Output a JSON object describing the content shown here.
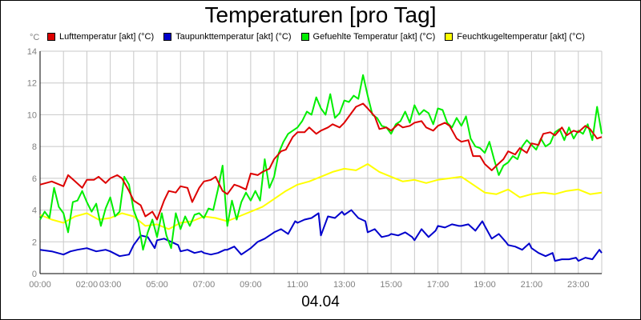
{
  "chart_data": {
    "type": "line",
    "title": "Temperaturen [pro Tag]",
    "unit": "°C",
    "footer": "04.04",
    "xlim": [
      0,
      24
    ],
    "ylim": [
      0,
      14
    ],
    "y_ticks": [
      0,
      2,
      4,
      6,
      8,
      10,
      12,
      14
    ],
    "x_ticks": [
      {
        "h": 0,
        "label": "00:00"
      },
      {
        "h": 2,
        "label": "02:00"
      },
      {
        "h": 3,
        "label": "03:00"
      },
      {
        "h": 5,
        "label": "05:00"
      },
      {
        "h": 7,
        "label": "07:00"
      },
      {
        "h": 9,
        "label": "09:00"
      },
      {
        "h": 11,
        "label": "11:00"
      },
      {
        "h": 13,
        "label": "13:00"
      },
      {
        "h": 15,
        "label": "15:00"
      },
      {
        "h": 17,
        "label": "17:00"
      },
      {
        "h": 19,
        "label": "19:00"
      },
      {
        "h": 21,
        "label": "21:00"
      },
      {
        "h": 23,
        "label": "23:00"
      }
    ],
    "grid": true,
    "legend_position": "top",
    "series": [
      {
        "name": "Lufttemperatur [akt] (°C)",
        "color": "#dd0000",
        "x": [
          0,
          0.5,
          1,
          1.2,
          1.5,
          1.8,
          2,
          2.3,
          2.5,
          2.8,
          3,
          3.3,
          3.5,
          3.8,
          4,
          4.3,
          4.5,
          4.8,
          5,
          5.3,
          5.5,
          5.8,
          6,
          6.3,
          6.5,
          6.8,
          7,
          7.3,
          7.5,
          7.8,
          8,
          8.3,
          8.5,
          8.8,
          9,
          9.3,
          9.5,
          9.8,
          10,
          10.3,
          10.5,
          10.8,
          11,
          11.3,
          11.5,
          11.8,
          12,
          12.3,
          12.5,
          12.8,
          13,
          13.3,
          13.5,
          13.8,
          14,
          14.3,
          14.5,
          14.8,
          15,
          15.3,
          15.5,
          15.8,
          16,
          16.3,
          16.5,
          16.8,
          17,
          17.3,
          17.5,
          17.8,
          18,
          18.3,
          18.5,
          18.8,
          19,
          19.3,
          19.5,
          19.8,
          20,
          20.3,
          20.5,
          20.8,
          21,
          21.3,
          21.5,
          21.8,
          22,
          22.3,
          22.5,
          22.8,
          23,
          23.3,
          23.5,
          23.8,
          24
        ],
        "y": [
          5.6,
          5.8,
          5.5,
          6.2,
          5.8,
          5.4,
          5.9,
          5.9,
          6.1,
          5.7,
          6.0,
          6.2,
          6.0,
          5.2,
          4.6,
          4.3,
          3.6,
          3.9,
          3.4,
          4.6,
          5.2,
          5.1,
          5.5,
          5.4,
          4.5,
          5.4,
          5.8,
          5.9,
          6.1,
          5.2,
          5.0,
          5.6,
          5.5,
          5.3,
          6.3,
          6.2,
          6.4,
          6.6,
          7.2,
          7.7,
          7.8,
          8.6,
          8.9,
          8.9,
          9.2,
          8.8,
          9.0,
          9.2,
          9.4,
          9.2,
          9.5,
          10.1,
          10.5,
          10.7,
          10.4,
          9.9,
          9.1,
          9.2,
          9.0,
          9.4,
          9.2,
          9.3,
          9.5,
          9.6,
          9.2,
          9.0,
          9.3,
          9.5,
          9.3,
          8.5,
          8.3,
          8.4,
          7.4,
          7.4,
          6.9,
          6.5,
          6.8,
          7.2,
          7.7,
          7.5,
          7.9,
          7.6,
          8.2,
          8.1,
          8.8,
          8.9,
          8.7,
          9.2,
          8.7,
          9.0,
          8.9,
          9.3,
          9.1,
          8.5,
          8.6
        ]
      },
      {
        "name": "Taupunkttemperatur [akt] (°C)",
        "color": "#0000cc",
        "x": [
          0,
          0.5,
          1,
          1.3,
          1.6,
          2,
          2.4,
          2.8,
          3,
          3.4,
          3.8,
          4,
          4.3,
          4.6,
          4.9,
          5,
          5.3,
          5.6,
          5.9,
          6,
          6.3,
          6.6,
          6.9,
          7,
          7.3,
          7.6,
          7.9,
          8,
          8.3,
          8.6,
          8.9,
          9,
          9.3,
          9.6,
          9.9,
          10,
          10.3,
          10.6,
          10.9,
          11,
          11.3,
          11.6,
          11.9,
          12,
          12.3,
          12.6,
          12.9,
          13,
          13.3,
          13.6,
          13.9,
          14,
          14.3,
          14.6,
          14.9,
          15,
          15.3,
          15.6,
          15.9,
          16,
          16.3,
          16.6,
          16.9,
          17,
          17.3,
          17.6,
          17.9,
          18,
          18.3,
          18.6,
          18.9,
          19,
          19.3,
          19.6,
          19.9,
          20,
          20.3,
          20.6,
          20.9,
          21,
          21.3,
          21.6,
          21.9,
          22,
          22.3,
          22.6,
          22.9,
          23,
          23.3,
          23.6,
          23.9,
          24
        ],
        "y": [
          1.5,
          1.4,
          1.2,
          1.4,
          1.5,
          1.6,
          1.4,
          1.5,
          1.4,
          1.1,
          1.2,
          1.8,
          2.4,
          2.3,
          1.6,
          2.1,
          2.2,
          2.0,
          1.8,
          1.4,
          1.5,
          1.3,
          1.4,
          1.3,
          1.2,
          1.3,
          1.5,
          1.5,
          1.7,
          1.2,
          1.5,
          1.6,
          2.0,
          2.2,
          2.5,
          2.6,
          2.8,
          2.5,
          3.3,
          3.2,
          3.4,
          3.5,
          3.8,
          2.4,
          3.6,
          3.5,
          3.9,
          3.7,
          4.0,
          3.5,
          3.3,
          2.6,
          2.8,
          2.3,
          2.4,
          2.5,
          2.4,
          2.6,
          2.3,
          2.1,
          2.8,
          2.3,
          2.7,
          3.0,
          2.9,
          3.1,
          3.0,
          3.0,
          3.1,
          2.7,
          3.3,
          3.0,
          2.2,
          2.5,
          2.0,
          1.8,
          1.7,
          1.5,
          1.9,
          1.6,
          1.3,
          1.1,
          1.3,
          0.8,
          0.9,
          0.9,
          1.0,
          0.8,
          1.0,
          0.9,
          1.5,
          1.3
        ]
      },
      {
        "name": "Gefuehlte Temperatur [akt] (°C)",
        "color": "#00ee00",
        "x": [
          0,
          0.2,
          0.4,
          0.6,
          0.8,
          1,
          1.2,
          1.4,
          1.6,
          1.8,
          2,
          2.2,
          2.4,
          2.6,
          2.8,
          3,
          3.2,
          3.4,
          3.6,
          3.8,
          4,
          4.2,
          4.4,
          4.6,
          4.8,
          5,
          5.2,
          5.4,
          5.6,
          5.8,
          6,
          6.2,
          6.4,
          6.6,
          6.8,
          7,
          7.2,
          7.4,
          7.6,
          7.8,
          8,
          8.2,
          8.4,
          8.6,
          8.8,
          9,
          9.2,
          9.4,
          9.6,
          9.8,
          10,
          10.2,
          10.4,
          10.6,
          10.8,
          11,
          11.2,
          11.4,
          11.6,
          11.8,
          12,
          12.2,
          12.4,
          12.6,
          12.8,
          13,
          13.2,
          13.4,
          13.6,
          13.8,
          14,
          14.2,
          14.4,
          14.6,
          14.8,
          15,
          15.2,
          15.4,
          15.6,
          15.8,
          16,
          16.2,
          16.4,
          16.6,
          16.8,
          17,
          17.2,
          17.4,
          17.6,
          17.8,
          18,
          18.2,
          18.4,
          18.6,
          18.8,
          19,
          19.2,
          19.4,
          19.6,
          19.8,
          20,
          20.2,
          20.4,
          20.6,
          20.8,
          21,
          21.2,
          21.4,
          21.6,
          21.8,
          22,
          22.2,
          22.4,
          22.6,
          22.8,
          23,
          23.2,
          23.4,
          23.6,
          23.8,
          24
        ],
        "y": [
          3.4,
          3.9,
          3.5,
          5.4,
          4.2,
          3.8,
          2.6,
          4.5,
          4.6,
          5.2,
          4.5,
          3.9,
          4.4,
          3.0,
          4.1,
          4.8,
          3.6,
          3.9,
          6.1,
          5.6,
          4.0,
          3.2,
          1.5,
          2.6,
          3.4,
          2.3,
          3.8,
          2.4,
          1.6,
          3.8,
          2.8,
          3.6,
          3.0,
          3.7,
          3.8,
          3.5,
          4.1,
          4.0,
          5.3,
          6.8,
          3.0,
          4.6,
          3.4,
          4.5,
          5.1,
          4.6,
          5.2,
          4.6,
          7.2,
          5.4,
          6.1,
          7.6,
          8.3,
          8.8,
          9.0,
          9.2,
          9.6,
          10.2,
          10.0,
          11.1,
          10.4,
          10.0,
          11.3,
          9.8,
          10.1,
          10.9,
          10.8,
          11.2,
          11.0,
          12.5,
          11.2,
          10.0,
          9.8,
          9.3,
          9.2,
          8.8,
          9.4,
          9.6,
          10.2,
          9.5,
          10.6,
          10.0,
          10.3,
          10.1,
          9.4,
          10.4,
          10.3,
          9.5,
          9.2,
          9.8,
          9.3,
          9.9,
          8.5,
          8.0,
          7.9,
          7.6,
          8.3,
          7.2,
          6.2,
          6.8,
          7.0,
          7.4,
          7.2,
          8.0,
          8.4,
          8.1,
          7.8,
          8.5,
          8.0,
          8.2,
          8.9,
          9.1,
          8.4,
          9.2,
          8.5,
          9.0,
          8.8,
          9.4,
          8.4,
          10.5,
          8.8
        ]
      },
      {
        "name": "Feuchtkugeltemperatur [akt] (°C)",
        "color": "#ffff00",
        "x": [
          0,
          0.5,
          1,
          1.5,
          2,
          2.5,
          3,
          3.5,
          4,
          4.5,
          5,
          5.5,
          6,
          6.5,
          7,
          7.5,
          8,
          8.5,
          9,
          9.5,
          10,
          10.5,
          11,
          11.5,
          12,
          12.5,
          13,
          13.5,
          14,
          14.5,
          15,
          15.5,
          16,
          16.5,
          17,
          17.5,
          18,
          18.5,
          19,
          19.5,
          20,
          20.5,
          21,
          21.5,
          22,
          22.5,
          23,
          23.5,
          24
        ],
        "y": [
          3.7,
          3.4,
          3.2,
          3.6,
          3.8,
          3.4,
          3.5,
          3.8,
          3.6,
          3.0,
          3.1,
          2.8,
          3.2,
          3.3,
          3.6,
          3.5,
          3.3,
          3.6,
          3.9,
          4.2,
          4.7,
          5.2,
          5.6,
          5.8,
          6.1,
          6.4,
          6.6,
          6.5,
          6.9,
          6.4,
          6.1,
          5.8,
          5.9,
          5.7,
          5.9,
          6.0,
          6.1,
          5.6,
          5.1,
          5.0,
          5.3,
          4.8,
          5.0,
          5.1,
          5.0,
          5.2,
          5.3,
          5.0,
          5.1
        ]
      }
    ]
  }
}
